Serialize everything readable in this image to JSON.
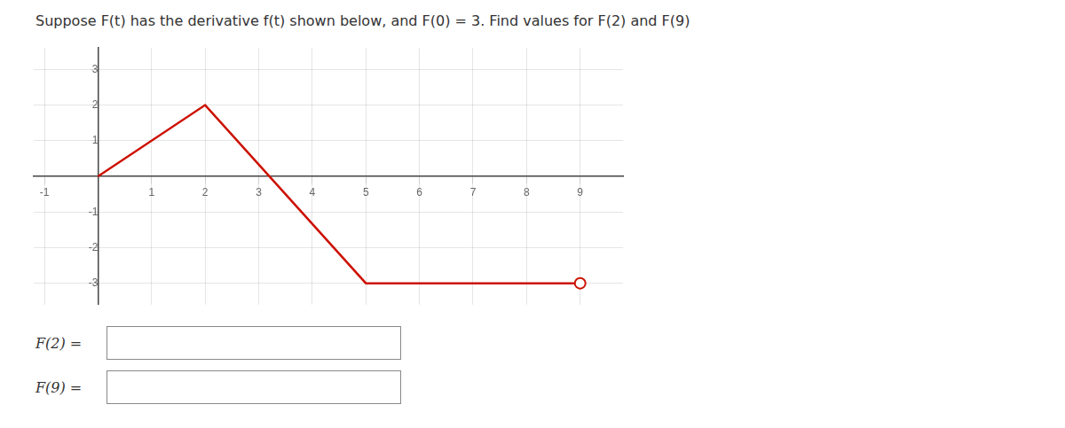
{
  "chart_data": {
    "type": "line",
    "title": "Suppose F(t) has the derivative f(t) shown below, and F(0) = 3. Find values for F(2) and F(9)",
    "x": [
      0,
      2,
      5,
      9
    ],
    "series": [
      {
        "color": "#cc1100",
        "values": [
          0,
          2,
          -3,
          -3
        ]
      },
      {
        "type": "scatter",
        "marker": "open_circle",
        "color": "#cc1100",
        "values": [
          null,
          null,
          null,
          -3
        ]
      }
    ],
    "xlim": [
      -1.2,
      9.8
    ],
    "ylim": [
      -3.6,
      3.6
    ],
    "xticks": [
      -1,
      1,
      2,
      3,
      4,
      5,
      6,
      7,
      8,
      9
    ],
    "yticks": [
      -3,
      -2,
      -1,
      1,
      2,
      3
    ],
    "grid": true,
    "annotations": [
      "F(2) =",
      "F(9) ="
    ]
  }
}
